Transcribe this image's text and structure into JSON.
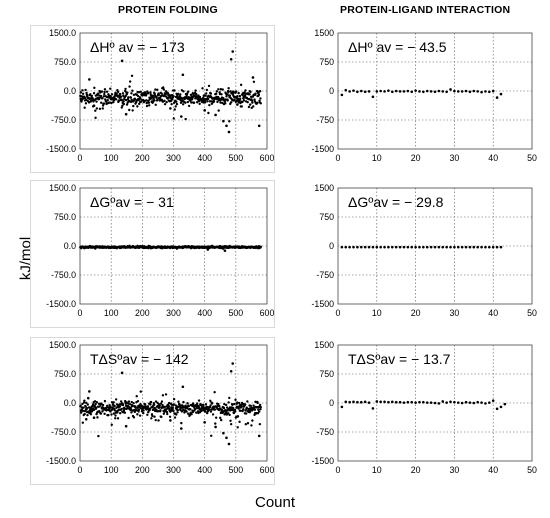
{
  "headers": {
    "left": "PROTEIN FOLDING",
    "right": "PROTEIN-LIGAND INTERACTION"
  },
  "axis_titles": {
    "y": "kJ/mol",
    "x": "Count"
  },
  "chart_data": [
    {
      "type": "scatter",
      "title": "",
      "annotation": "ΔHº av = − 173",
      "xlim": [
        0,
        600
      ],
      "ylim": [
        -1500,
        1500
      ],
      "xticks": [
        "0",
        "100",
        "200",
        "300",
        "400",
        "500",
        "600"
      ],
      "yticks": [
        "1500.0",
        "750.0",
        "0.0",
        "-750.0",
        "-1500.0"
      ],
      "grid": true,
      "series": [
        {
          "n": 580,
          "center": -173,
          "spread": 170,
          "outliers": [
            [
              30,
              300
            ],
            [
              45,
              -380
            ],
            [
              135,
              780
            ],
            [
              148,
              -600
            ],
            [
              290,
              -450
            ],
            [
              325,
              -660
            ],
            [
              330,
              420
            ],
            [
              400,
              -500
            ],
            [
              435,
              -620
            ],
            [
              460,
              -780
            ],
            [
              470,
              -900
            ],
            [
              478,
              -1060
            ],
            [
              485,
              820
            ],
            [
              490,
              1020
            ],
            [
              505,
              -350
            ],
            [
              510,
              -290
            ],
            [
              575,
              -900
            ],
            [
              555,
              350
            ]
          ]
        }
      ]
    },
    {
      "type": "scatter",
      "title": "",
      "annotation": "ΔHº av = − 43.5",
      "xlim": [
        0,
        50
      ],
      "ylim": [
        -1500,
        1500
      ],
      "xticks": [
        "0",
        "10",
        "20",
        "30",
        "40",
        "50"
      ],
      "yticks": [
        "1500",
        "750",
        "0",
        "-750",
        "-1500"
      ],
      "grid": true,
      "series": [
        {
          "points": [
            [
              1,
              -100
            ],
            [
              2,
              20
            ],
            [
              3,
              -10
            ],
            [
              4,
              10
            ],
            [
              5,
              -20
            ],
            [
              6,
              0
            ],
            [
              7,
              -20
            ],
            [
              8,
              -10
            ],
            [
              9,
              -150
            ],
            [
              10,
              -10
            ],
            [
              11,
              0
            ],
            [
              12,
              -10
            ],
            [
              13,
              10
            ],
            [
              14,
              -20
            ],
            [
              15,
              0
            ],
            [
              16,
              -10
            ],
            [
              17,
              -10
            ],
            [
              18,
              0
            ],
            [
              19,
              -20
            ],
            [
              20,
              10
            ],
            [
              21,
              -10
            ],
            [
              22,
              -20
            ],
            [
              23,
              0
            ],
            [
              24,
              -10
            ],
            [
              25,
              -20
            ],
            [
              26,
              0
            ],
            [
              27,
              -10
            ],
            [
              28,
              -20
            ],
            [
              29,
              40
            ],
            [
              30,
              0
            ],
            [
              31,
              -10
            ],
            [
              32,
              -10
            ],
            [
              33,
              0
            ],
            [
              34,
              -20
            ],
            [
              35,
              0
            ],
            [
              36,
              -10
            ],
            [
              37,
              -30
            ],
            [
              38,
              -10
            ],
            [
              39,
              -20
            ],
            [
              40,
              0
            ],
            [
              41,
              -170
            ],
            [
              42,
              -80
            ]
          ]
        }
      ]
    },
    {
      "type": "scatter",
      "title": "",
      "annotation": "ΔGºav = − 31",
      "xlim": [
        0,
        600
      ],
      "ylim": [
        -1500,
        1500
      ],
      "xticks": [
        "0",
        "100",
        "200",
        "300",
        "400",
        "500",
        "600"
      ],
      "yticks": [
        "1500.0",
        "750.0",
        "0.0",
        "-750.0",
        "-1500.0"
      ],
      "grid": true,
      "series": [
        {
          "n": 580,
          "center": -31,
          "spread": 22,
          "outliers": [
            [
              465,
              -120
            ],
            [
              410,
              -90
            ]
          ]
        }
      ]
    },
    {
      "type": "scatter",
      "title": "",
      "annotation": "ΔGºav = − 29.8",
      "xlim": [
        0,
        50
      ],
      "ylim": [
        -1500,
        1500
      ],
      "xticks": [
        "0",
        "10",
        "20",
        "30",
        "40",
        "50"
      ],
      "yticks": [
        "1500",
        "750",
        "0",
        "-750",
        "-1500"
      ],
      "grid": true,
      "series": [
        {
          "points": [
            [
              1,
              -30
            ],
            [
              2,
              -30
            ],
            [
              3,
              -30
            ],
            [
              4,
              -30
            ],
            [
              5,
              -30
            ],
            [
              6,
              -30
            ],
            [
              7,
              -30
            ],
            [
              8,
              -30
            ],
            [
              9,
              -30
            ],
            [
              10,
              -30
            ],
            [
              11,
              -30
            ],
            [
              12,
              -30
            ],
            [
              13,
              -30
            ],
            [
              14,
              -30
            ],
            [
              15,
              -30
            ],
            [
              16,
              -30
            ],
            [
              17,
              -30
            ],
            [
              18,
              -30
            ],
            [
              19,
              -30
            ],
            [
              20,
              -30
            ],
            [
              21,
              -30
            ],
            [
              22,
              -30
            ],
            [
              23,
              -30
            ],
            [
              24,
              -30
            ],
            [
              25,
              -30
            ],
            [
              26,
              -30
            ],
            [
              27,
              -30
            ],
            [
              28,
              -30
            ],
            [
              29,
              -30
            ],
            [
              30,
              -30
            ],
            [
              31,
              -30
            ],
            [
              32,
              -30
            ],
            [
              33,
              -30
            ],
            [
              34,
              -30
            ],
            [
              35,
              -30
            ],
            [
              36,
              -30
            ],
            [
              37,
              -30
            ],
            [
              38,
              -30
            ],
            [
              39,
              -30
            ],
            [
              40,
              -30
            ],
            [
              41,
              -30
            ],
            [
              42,
              -30
            ]
          ]
        }
      ]
    },
    {
      "type": "scatter",
      "title": "",
      "annotation": "TΔSºav = − 142",
      "xlim": [
        0,
        600
      ],
      "ylim": [
        -1500,
        1500
      ],
      "xticks": [
        "0",
        "100",
        "200",
        "300",
        "400",
        "500",
        "600"
      ],
      "yticks": [
        "1500.0",
        "750.0",
        "0.0",
        "-750.0",
        "-1500.0"
      ],
      "grid": true,
      "series": [
        {
          "n": 580,
          "center": -142,
          "spread": 170,
          "outliers": [
            [
              30,
              300
            ],
            [
              45,
              -380
            ],
            [
              135,
              780
            ],
            [
              148,
              -600
            ],
            [
              290,
              -450
            ],
            [
              325,
              -660
            ],
            [
              330,
              420
            ],
            [
              400,
              -500
            ],
            [
              435,
              -620
            ],
            [
              460,
              -780
            ],
            [
              470,
              -900
            ],
            [
              478,
              -1060
            ],
            [
              485,
              820
            ],
            [
              490,
              1020
            ],
            [
              505,
              -350
            ],
            [
              575,
              -850
            ],
            [
              20,
              -420
            ]
          ]
        }
      ]
    },
    {
      "type": "scatter",
      "title": "",
      "annotation": "TΔSºav = − 13.7",
      "xlim": [
        0,
        50
      ],
      "ylim": [
        -1500,
        1500
      ],
      "xticks": [
        "0",
        "10",
        "20",
        "30",
        "40",
        "50"
      ],
      "yticks": [
        "1500",
        "750",
        "0",
        "-750",
        "-1500"
      ],
      "grid": true,
      "series": [
        {
          "points": [
            [
              1,
              -100
            ],
            [
              2,
              30
            ],
            [
              3,
              20
            ],
            [
              4,
              30
            ],
            [
              5,
              20
            ],
            [
              6,
              20
            ],
            [
              7,
              30
            ],
            [
              8,
              10
            ],
            [
              9,
              -140
            ],
            [
              10,
              40
            ],
            [
              11,
              30
            ],
            [
              12,
              30
            ],
            [
              13,
              20
            ],
            [
              14,
              30
            ],
            [
              15,
              20
            ],
            [
              16,
              20
            ],
            [
              17,
              10
            ],
            [
              18,
              20
            ],
            [
              19,
              20
            ],
            [
              20,
              10
            ],
            [
              21,
              20
            ],
            [
              22,
              20
            ],
            [
              23,
              10
            ],
            [
              24,
              10
            ],
            [
              25,
              0
            ],
            [
              26,
              -10
            ],
            [
              27,
              40
            ],
            [
              28,
              10
            ],
            [
              29,
              30
            ],
            [
              30,
              20
            ],
            [
              31,
              10
            ],
            [
              32,
              0
            ],
            [
              33,
              20
            ],
            [
              34,
              10
            ],
            [
              35,
              0
            ],
            [
              36,
              20
            ],
            [
              37,
              10
            ],
            [
              38,
              -10
            ],
            [
              39,
              10
            ],
            [
              40,
              60
            ],
            [
              41,
              -150
            ],
            [
              42,
              -100
            ],
            [
              43,
              -30
            ]
          ]
        }
      ]
    }
  ]
}
